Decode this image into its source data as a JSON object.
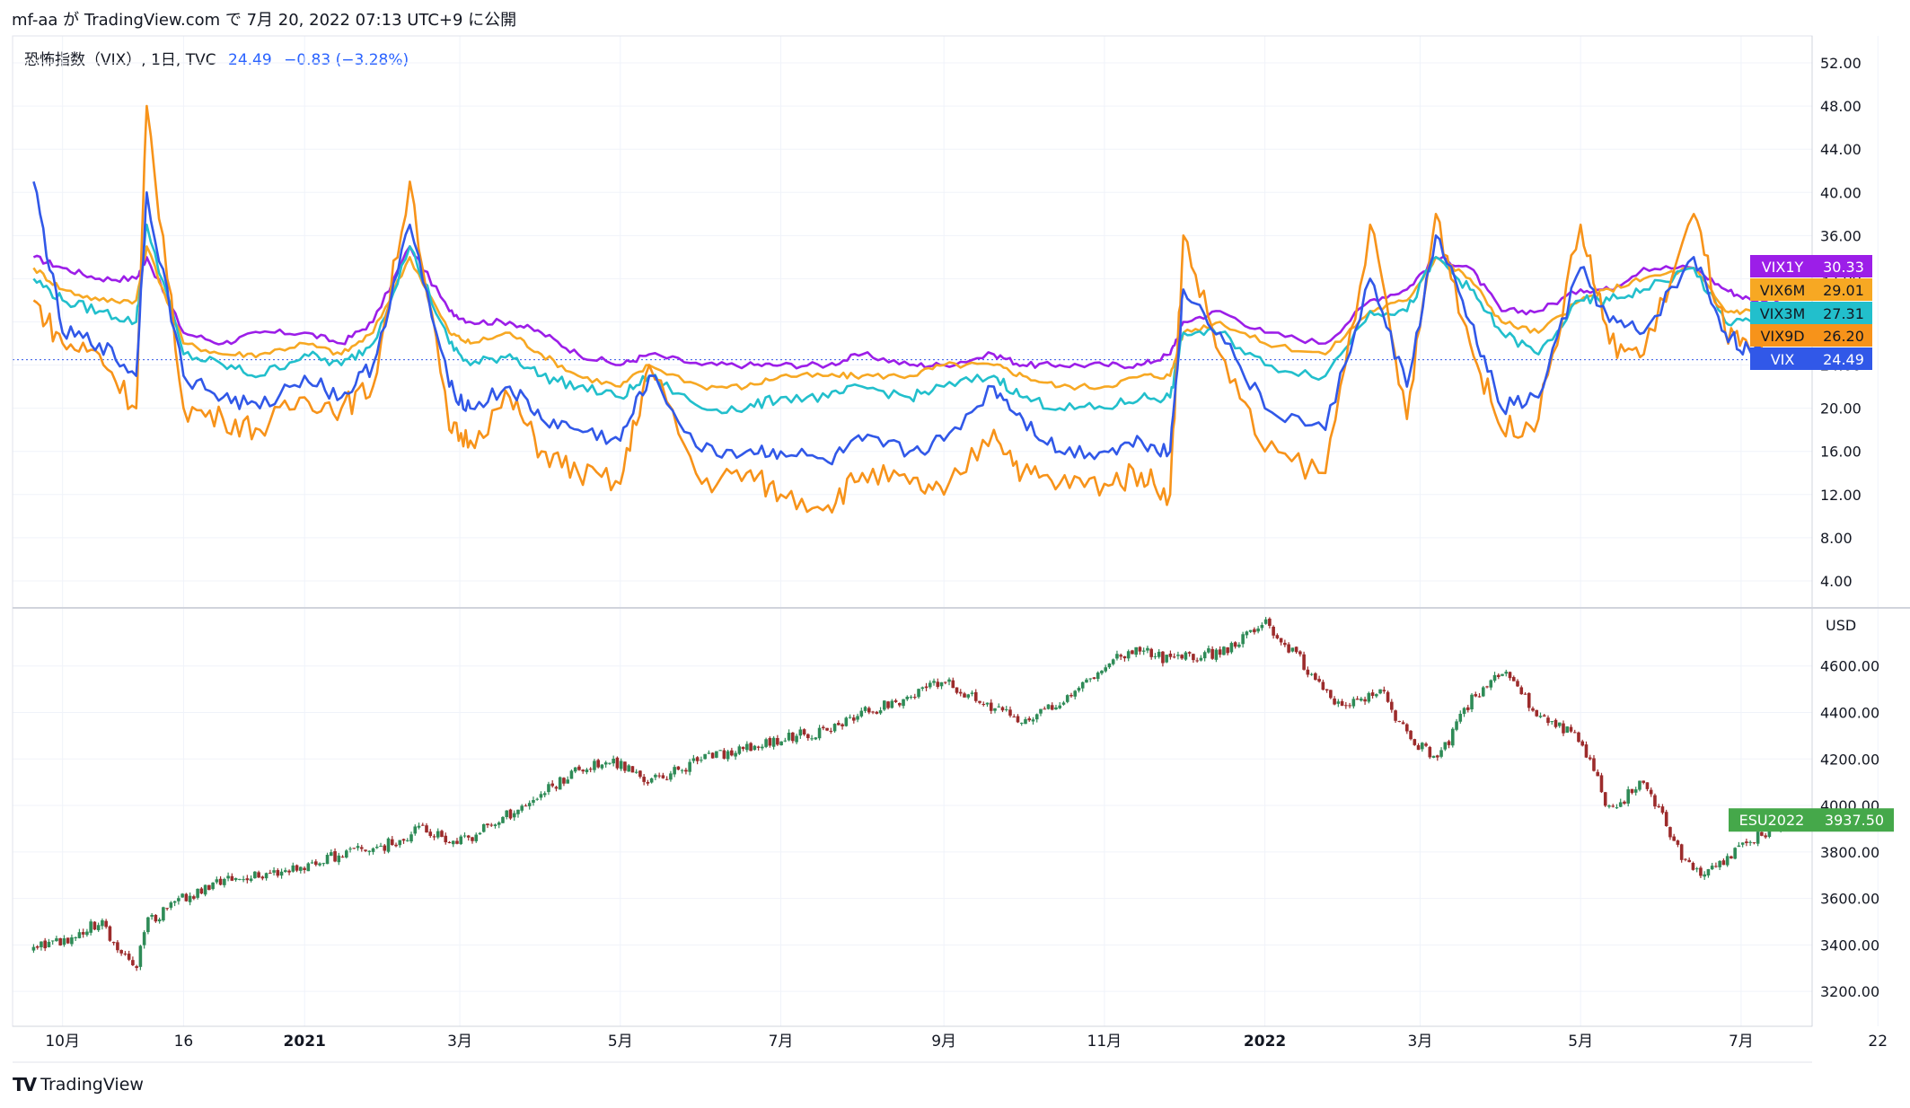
{
  "header": {
    "text": "mf-aa が TradingView.com で 7月 20, 2022 07:13 UTC+9 に公開"
  },
  "legend": {
    "symbol": "恐怖指数（VIX）, 1日, TVC",
    "value": "24.49",
    "change": "−0.83 (−3.28%)"
  },
  "footer": {
    "brand": "TradingView"
  },
  "colors": {
    "VIX1Y": "#9c1ee8",
    "VIX6M": "#f7a823",
    "VIX3M": "#22bfcc",
    "VIX9D": "#f7931a",
    "VIX": "#3158e8",
    "candle_up": "#2e8b57",
    "candle_down": "#9c2b2b",
    "esu_label": "#45a84a"
  },
  "chart_data": [
    {
      "type": "line",
      "title": "恐怖指数（VIX）, 1日, TVC",
      "x": [
        "2020-09-20",
        "2020-10-01",
        "2020-10-15",
        "2020-10-29",
        "2020-11-02",
        "2020-11-16",
        "2020-12-01",
        "2020-12-15",
        "2021-01-01",
        "2021-01-15",
        "2021-01-27",
        "2021-02-10",
        "2021-02-25",
        "2021-03-05",
        "2021-03-20",
        "2021-04-01",
        "2021-04-15",
        "2021-05-01",
        "2021-05-12",
        "2021-06-01",
        "2021-06-18",
        "2021-07-01",
        "2021-07-19",
        "2021-08-01",
        "2021-08-19",
        "2021-09-01",
        "2021-09-20",
        "2021-10-01",
        "2021-10-15",
        "2021-11-01",
        "2021-11-15",
        "2021-11-26",
        "2021-12-01",
        "2021-12-15",
        "2022-01-01",
        "2022-01-24",
        "2022-02-10",
        "2022-02-24",
        "2022-03-07",
        "2022-03-20",
        "2022-04-01",
        "2022-04-15",
        "2022-05-01",
        "2022-05-12",
        "2022-05-25",
        "2022-06-13",
        "2022-06-25",
        "2022-07-05",
        "2022-07-19"
      ],
      "y_range": [
        1.5,
        54.5
      ],
      "y_ticks": [
        "52.00",
        "48.00",
        "44.00",
        "40.00",
        "36.00",
        "32.00",
        "28.00",
        "24.00",
        "20.00",
        "16.00",
        "12.00",
        "8.00",
        "4.00"
      ],
      "series": [
        {
          "name": "VIX1Y",
          "last": "30.33",
          "values": [
            34,
            33,
            32,
            32,
            34,
            27,
            26,
            27,
            27,
            26,
            28,
            35,
            29,
            28,
            28,
            27,
            25,
            24,
            25,
            24,
            24,
            24,
            24,
            25,
            24,
            24,
            25,
            24,
            24,
            24,
            24,
            25,
            28,
            29,
            27,
            26,
            30,
            31,
            34,
            33,
            29,
            29,
            31,
            31,
            33,
            33,
            31,
            30,
            30.3
          ]
        },
        {
          "name": "VIX6M",
          "last": "29.01",
          "values": [
            33,
            31,
            30,
            30,
            35,
            26,
            25,
            25,
            26,
            25,
            27,
            34,
            27,
            26,
            27,
            25,
            23,
            22,
            24,
            22,
            22,
            23,
            23,
            23,
            23,
            24,
            24,
            23,
            22,
            22,
            23,
            23,
            27,
            28,
            26,
            25,
            29,
            30,
            34,
            32,
            28,
            27,
            30,
            31,
            32,
            33,
            29,
            29,
            29.0
          ]
        },
        {
          "name": "VIX3M",
          "last": "27.31",
          "values": [
            32,
            30,
            29,
            28,
            37,
            25,
            24,
            23,
            25,
            24,
            26,
            35,
            26,
            24,
            25,
            23,
            22,
            21,
            23,
            20,
            20,
            21,
            21,
            22,
            21,
            22,
            23,
            21,
            20,
            20,
            21,
            21,
            27,
            27,
            24,
            23,
            29,
            29,
            34,
            31,
            27,
            25,
            30,
            30,
            31,
            33,
            28,
            28,
            27.3
          ]
        },
        {
          "name": "VIX9D",
          "last": "26.20",
          "values": [
            30,
            26,
            25,
            20,
            48,
            20,
            19,
            18,
            21,
            20,
            22,
            41,
            18,
            17,
            21,
            16,
            14,
            13,
            24,
            13,
            14,
            12,
            11,
            14,
            13,
            12,
            18,
            14,
            13,
            13,
            14,
            12,
            36,
            25,
            16,
            14,
            37,
            19,
            38,
            26,
            18,
            19,
            37,
            26,
            25,
            38,
            27,
            25,
            26.2
          ]
        },
        {
          "name": "VIX",
          "last": "24.49",
          "values": [
            41,
            27,
            26,
            23,
            40,
            23,
            21,
            20,
            23,
            21,
            24,
            37,
            22,
            20,
            22,
            19,
            18,
            17,
            23,
            16,
            16,
            16,
            15,
            17,
            16,
            17,
            22,
            19,
            16,
            16,
            17,
            16,
            31,
            27,
            20,
            18,
            32,
            22,
            36,
            28,
            20,
            21,
            33,
            28,
            27,
            34,
            27,
            25,
            24.5
          ]
        }
      ]
    },
    {
      "type": "candlestick",
      "symbol": "ESU2022",
      "last": "3937.50",
      "unit": "USD",
      "y_range": [
        3050,
        4850
      ],
      "y_ticks": [
        "4600.00",
        "4400.00",
        "4200.00",
        "4000.00",
        "3800.00",
        "3600.00",
        "3400.00",
        "3200.00"
      ],
      "x": [
        "2020-09-20",
        "2020-10-01",
        "2020-10-15",
        "2020-10-29",
        "2020-11-02",
        "2020-11-16",
        "2020-12-01",
        "2020-12-15",
        "2021-01-01",
        "2021-01-15",
        "2021-02-01",
        "2021-02-15",
        "2021-03-01",
        "2021-03-15",
        "2021-04-01",
        "2021-04-15",
        "2021-05-01",
        "2021-05-12",
        "2021-06-01",
        "2021-06-15",
        "2021-07-01",
        "2021-07-19",
        "2021-08-01",
        "2021-08-15",
        "2021-09-01",
        "2021-09-15",
        "2021-10-01",
        "2021-10-15",
        "2021-11-01",
        "2021-11-15",
        "2021-11-26",
        "2021-12-01",
        "2021-12-15",
        "2022-01-01",
        "2022-01-15",
        "2022-01-28",
        "2022-02-15",
        "2022-02-24",
        "2022-03-08",
        "2022-03-20",
        "2022-04-01",
        "2022-04-15",
        "2022-05-01",
        "2022-05-12",
        "2022-05-25",
        "2022-06-10",
        "2022-06-17",
        "2022-07-01",
        "2022-07-19"
      ],
      "close": [
        3380,
        3420,
        3500,
        3290,
        3500,
        3600,
        3680,
        3700,
        3740,
        3790,
        3830,
        3900,
        3840,
        3930,
        4050,
        4160,
        4180,
        4100,
        4200,
        4230,
        4290,
        4320,
        4400,
        4450,
        4530,
        4450,
        4350,
        4450,
        4600,
        4680,
        4620,
        4640,
        4660,
        4780,
        4620,
        4420,
        4480,
        4300,
        4200,
        4450,
        4580,
        4390,
        4280,
        3980,
        4100,
        3750,
        3700,
        3830,
        3937.5
      ]
    }
  ],
  "x_axis_labels": [
    "10月",
    "16",
    "2021",
    "3月",
    "5月",
    "7月",
    "9月",
    "11月",
    "2022",
    "3月",
    "5月",
    "7月",
    "22"
  ]
}
